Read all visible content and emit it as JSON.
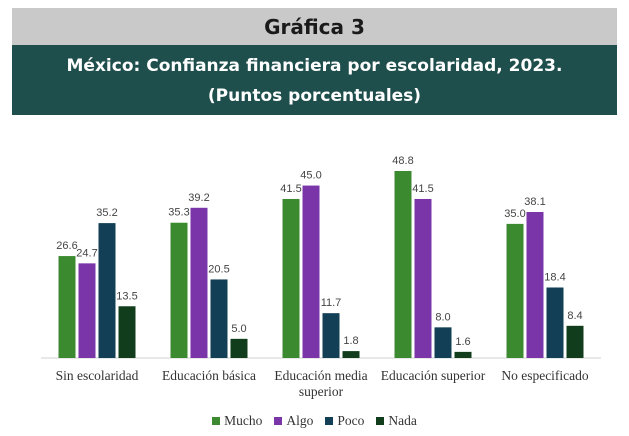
{
  "chart_data": {
    "type": "bar",
    "label": "Gráfica 3",
    "title": "México: Confianza financiera por escolaridad, 2023.",
    "subtitle": "(Puntos porcentuales)",
    "categories": [
      "Sin escolaridad",
      "Educación básica",
      "Educación media superior",
      "Educación superior",
      "No especificado"
    ],
    "series": [
      {
        "name": "Mucho",
        "color": "#3b8a2f",
        "values": [
          26.6,
          35.3,
          41.5,
          48.8,
          35.0
        ],
        "value_labels": [
          "26.6",
          "35.3",
          "41.5",
          "48.8",
          "35.0"
        ]
      },
      {
        "name": "Algo",
        "color": "#7a35a9",
        "values": [
          24.7,
          39.2,
          45.0,
          41.5,
          38.1
        ],
        "value_labels": [
          "24.7",
          "39.2",
          "45.0",
          "41.5",
          "38.1"
        ]
      },
      {
        "name": "Poco",
        "color": "#123f55",
        "values": [
          35.2,
          20.5,
          11.7,
          8.0,
          18.4
        ],
        "value_labels": [
          "35.2",
          "20.5",
          "11.7",
          "8.0",
          "18.4"
        ]
      },
      {
        "name": "Nada",
        "color": "#113d1c",
        "values": [
          13.5,
          5.0,
          1.8,
          1.6,
          8.4
        ],
        "value_labels": [
          "13.5",
          "5.0",
          "1.8",
          "1.6",
          "8.4"
        ]
      }
    ]
  }
}
